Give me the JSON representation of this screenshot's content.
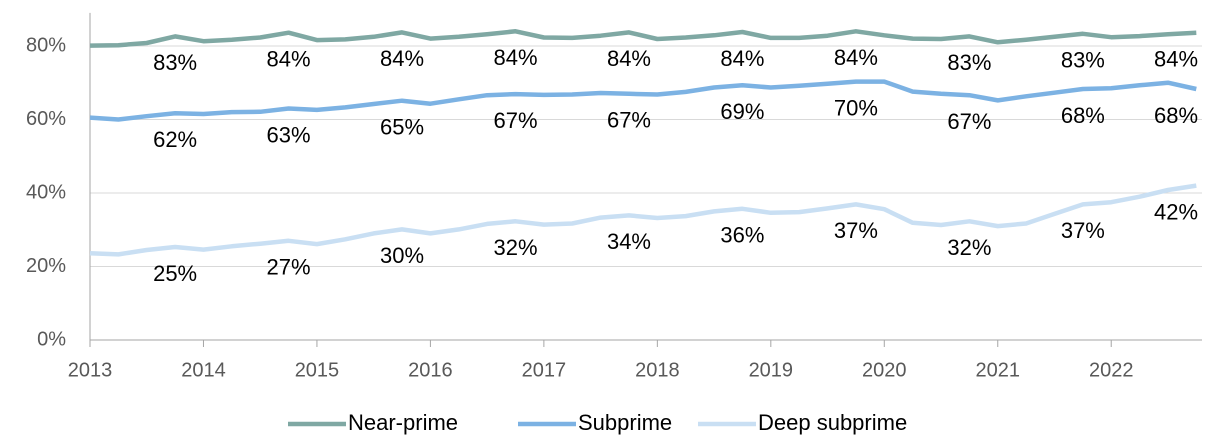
{
  "chart_data": {
    "type": "line",
    "x": [
      2013,
      2013.25,
      2013.5,
      2013.75,
      2014,
      2014.25,
      2014.5,
      2014.75,
      2015,
      2015.25,
      2015.5,
      2015.75,
      2016,
      2016.25,
      2016.5,
      2016.75,
      2017,
      2017.25,
      2017.5,
      2017.75,
      2018,
      2018.25,
      2018.5,
      2018.75,
      2019,
      2019.25,
      2019.5,
      2019.75,
      2020,
      2020.25,
      2020.5,
      2020.75,
      2021,
      2021.25,
      2021.5,
      2021.75,
      2022,
      2022.25,
      2022.5,
      2022.75
    ],
    "series": [
      {
        "name": "Near-prime",
        "color": "#7fa8a3",
        "values": [
          80.1,
          80.2,
          80.8,
          82.6,
          81.3,
          81.7,
          82.3,
          83.6,
          81.6,
          81.8,
          82.5,
          83.7,
          82.0,
          82.5,
          83.2,
          84.0,
          82.3,
          82.2,
          82.8,
          83.7,
          81.9,
          82.3,
          82.9,
          83.8,
          82.2,
          82.2,
          82.8,
          84.0,
          82.9,
          82.0,
          81.9,
          82.6,
          81.0,
          81.7,
          82.5,
          83.3,
          82.4,
          82.7,
          83.2,
          83.6
        ],
        "value_labels": [
          null,
          null,
          null,
          "83%",
          null,
          null,
          null,
          "84%",
          null,
          null,
          null,
          "84%",
          null,
          null,
          null,
          "84%",
          null,
          null,
          null,
          "84%",
          null,
          null,
          null,
          "84%",
          null,
          null,
          null,
          "84%",
          null,
          null,
          null,
          "83%",
          null,
          null,
          null,
          "83%",
          null,
          null,
          null,
          "84%"
        ]
      },
      {
        "name": "Subprime",
        "color": "#7cb2e3",
        "values": [
          60.5,
          60.0,
          60.9,
          61.7,
          61.5,
          62.0,
          62.1,
          63.0,
          62.6,
          63.3,
          64.2,
          65.1,
          64.3,
          65.5,
          66.6,
          66.9,
          66.7,
          66.8,
          67.2,
          67.0,
          66.8,
          67.5,
          68.7,
          69.3,
          68.7,
          69.2,
          69.7,
          70.3,
          70.3,
          67.6,
          67.0,
          66.6,
          65.2,
          66.3,
          67.3,
          68.3,
          68.5,
          69.3,
          70.0,
          68.3
        ],
        "value_labels": [
          null,
          null,
          null,
          "62%",
          null,
          null,
          null,
          "63%",
          null,
          null,
          null,
          "65%",
          null,
          null,
          null,
          "67%",
          null,
          null,
          null,
          "67%",
          null,
          null,
          null,
          "69%",
          null,
          null,
          null,
          "70%",
          null,
          null,
          null,
          "67%",
          null,
          null,
          null,
          "68%",
          null,
          null,
          null,
          "68%"
        ]
      },
      {
        "name": "Deep subprime",
        "color": "#c9dff3",
        "values": [
          23.6,
          23.3,
          24.5,
          25.3,
          24.6,
          25.5,
          26.2,
          27.0,
          26.1,
          27.4,
          29.0,
          30.1,
          29.0,
          30.1,
          31.6,
          32.3,
          31.4,
          31.7,
          33.3,
          33.9,
          33.2,
          33.7,
          35.0,
          35.7,
          34.6,
          34.8,
          35.8,
          36.9,
          35.6,
          31.9,
          31.3,
          32.3,
          31.0,
          31.7,
          34.3,
          36.9,
          37.5,
          39.0,
          40.8,
          42.0
        ],
        "value_labels": [
          null,
          null,
          null,
          "25%",
          null,
          null,
          null,
          "27%",
          null,
          null,
          null,
          "30%",
          null,
          null,
          null,
          "32%",
          null,
          null,
          null,
          "34%",
          null,
          null,
          null,
          "36%",
          null,
          null,
          null,
          "37%",
          null,
          null,
          null,
          "32%",
          null,
          null,
          null,
          "37%",
          null,
          null,
          null,
          "42%"
        ]
      }
    ],
    "xlim": [
      2013,
      2022.8
    ],
    "xticks": [
      2013,
      2014,
      2015,
      2016,
      2017,
      2018,
      2019,
      2020,
      2021,
      2022
    ],
    "ylim": [
      0,
      89
    ],
    "yticks": [
      {
        "value": 0,
        "label": "0%"
      },
      {
        "value": 20,
        "label": "20%"
      },
      {
        "value": 40,
        "label": "40%"
      },
      {
        "value": 60,
        "label": "60%"
      },
      {
        "value": 80,
        "label": "80%"
      }
    ],
    "grid": true,
    "legend": "bottom"
  }
}
